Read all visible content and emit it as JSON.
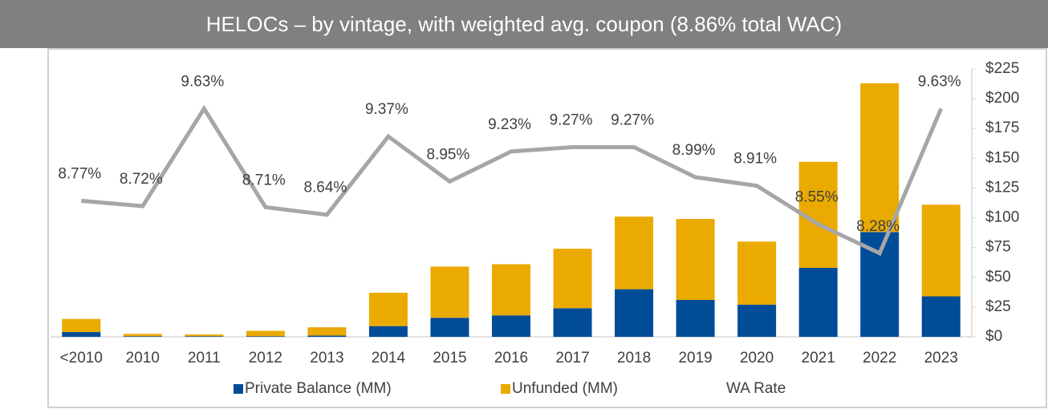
{
  "chart_data": {
    "type": "bar",
    "stacked": true,
    "title": "HELOCs – by vintage, with weighted avg. coupon (8.86% total WAC)",
    "categories": [
      "<2010",
      "2010",
      "2011",
      "2012",
      "2013",
      "2014",
      "2015",
      "2016",
      "2017",
      "2018",
      "2019",
      "2020",
      "2021",
      "2022",
      "2023"
    ],
    "series": [
      {
        "name": "Private Balance (MM)",
        "color": "#004c97",
        "values": [
          4,
          0.5,
          0.5,
          0.5,
          1,
          9,
          16,
          18,
          24,
          40,
          31,
          27,
          58,
          88,
          34
        ]
      },
      {
        "name": "Unfunded (MM)",
        "color": "#eaaa00",
        "values": [
          11,
          2,
          1.5,
          4.5,
          7,
          28,
          43,
          43,
          50,
          61,
          68,
          53,
          89,
          125,
          77
        ]
      },
      {
        "name": "WA Rate",
        "type": "line",
        "axis": "y2",
        "color": "#a6a6a6",
        "values": [
          8.77,
          8.72,
          9.63,
          8.71,
          8.64,
          9.37,
          8.95,
          9.23,
          9.27,
          9.27,
          8.99,
          8.91,
          8.55,
          8.28,
          9.63
        ],
        "value_labels": [
          "8.77%",
          "8.72%",
          "9.63%",
          "8.71%",
          "8.64%",
          "9.37%",
          "8.95%",
          "9.23%",
          "9.27%",
          "9.27%",
          "8.99%",
          "8.91%",
          "8.55%",
          "8.28%",
          "9.63%"
        ]
      }
    ],
    "ylim": [
      0,
      225
    ],
    "yticks": [
      {
        "value": 0,
        "label": "$0"
      },
      {
        "value": 25,
        "label": "$25"
      },
      {
        "value": 50,
        "label": "$50"
      },
      {
        "value": 75,
        "label": "$75"
      },
      {
        "value": 100,
        "label": "$100"
      },
      {
        "value": 125,
        "label": "$125"
      },
      {
        "value": 150,
        "label": "$150"
      },
      {
        "value": 175,
        "label": "$175"
      },
      {
        "value": 200,
        "label": "$200"
      },
      {
        "value": 225,
        "label": "$225"
      }
    ],
    "y2lim": [
      7.5,
      10
    ]
  }
}
